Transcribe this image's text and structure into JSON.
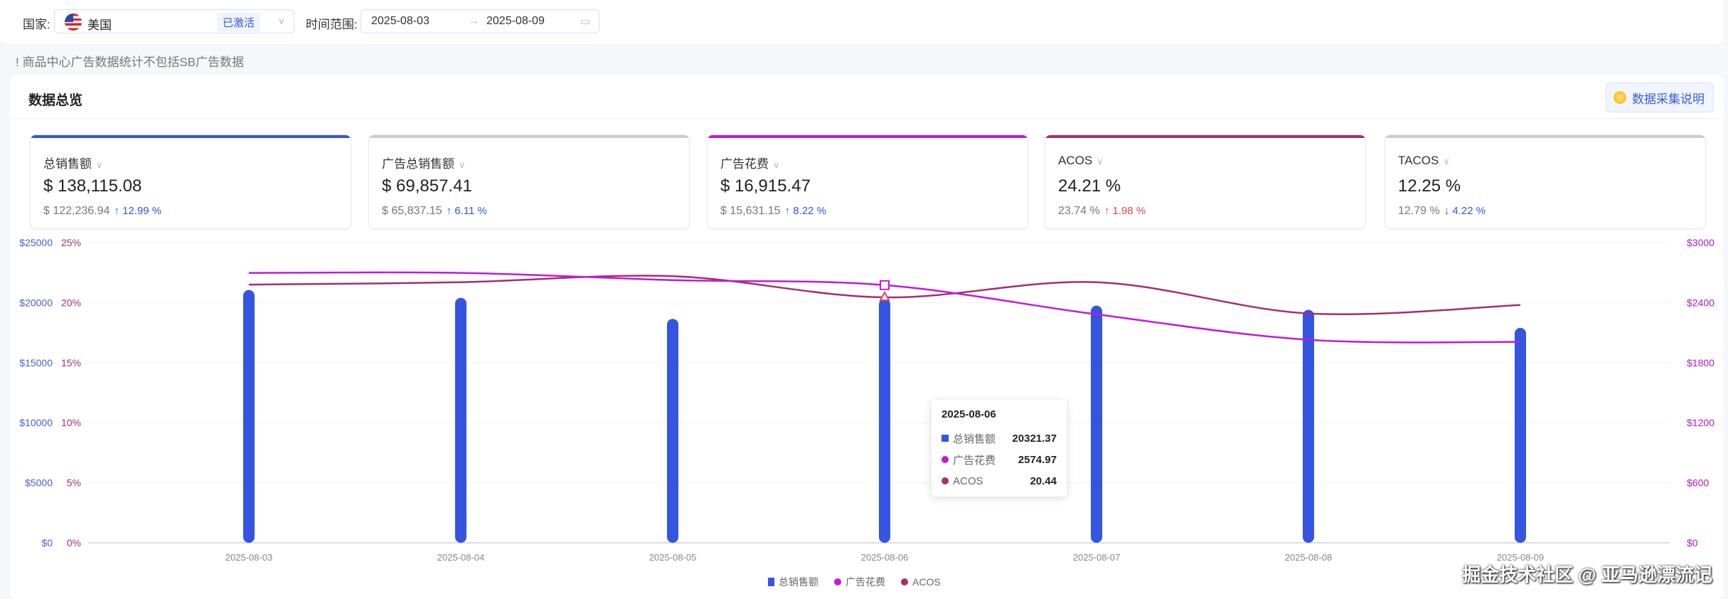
{
  "filters": {
    "country_label": "国家:",
    "country": "美国",
    "country_status": "已激活",
    "range_label": "时间范围:",
    "start_date": "2025-08-03",
    "end_date": "2025-08-09"
  },
  "notice": "! 商品中心广告数据统计不包括SB广告数据",
  "overview": {
    "title": "数据总览",
    "help_button": "数据采集说明"
  },
  "cards": [
    {
      "name": "总销售额",
      "value": "$ 138,115.08",
      "prev": "$ 122,236.94",
      "change": "12.99 %",
      "dir": "up",
      "color": "#3355e0",
      "chg_color": "#3355e0"
    },
    {
      "name": "广告总销售额",
      "value": "$ 69,857.41",
      "prev": "$ 65,837.15",
      "change": "6.11 %",
      "dir": "up",
      "color": "#cccccc",
      "chg_color": "#3355e0"
    },
    {
      "name": "广告花费",
      "value": "$ 16,915.47",
      "prev": "$ 15,631.15",
      "change": "8.22 %",
      "dir": "up",
      "color": "#c21ad6",
      "chg_color": "#3355e0"
    },
    {
      "name": "ACOS",
      "value": "24.21 %",
      "prev": "23.74 %",
      "change": "1.98 %",
      "dir": "up",
      "color": "#a3306e",
      "chg_color": "#e04848"
    },
    {
      "name": "TACOS",
      "value": "12.25 %",
      "prev": "12.79 %",
      "change": "4.22 %",
      "dir": "down",
      "color": "#cccccc",
      "chg_color": "#3355e0"
    }
  ],
  "chart_data": {
    "type": "bar",
    "categories": [
      "2025-08-03",
      "2025-08-04",
      "2025-08-05",
      "2025-08-06",
      "2025-08-07",
      "2025-08-08",
      "2025-08-09"
    ],
    "series": [
      {
        "name": "总销售额",
        "type": "bar",
        "axis": "left-dollar",
        "color": "#3355e0",
        "values": [
          21050,
          20400,
          18650,
          20321.37,
          19750,
          19400,
          17900
        ]
      },
      {
        "name": "广告花费",
        "type": "line",
        "axis": "right-dollar",
        "color": "#c21ad6",
        "values": [
          2697,
          2697,
          2625,
          2574.97,
          2283,
          2029,
          2007
        ]
      },
      {
        "name": "ACOS",
        "type": "line",
        "axis": "left-percent",
        "color": "#a3306e",
        "values": [
          21.5,
          21.7,
          22.2,
          20.44,
          21.7,
          19.1,
          19.8
        ]
      }
    ],
    "left_ticks": [
      "$0",
      "$5000",
      "$10000",
      "$15000",
      "$20000",
      "$25000"
    ],
    "pct_ticks": [
      "0%",
      "5%",
      "10%",
      "15%",
      "20%",
      "25%"
    ],
    "right_ticks": [
      "$0",
      "$600",
      "$1200",
      "$1800",
      "$2400",
      "$3000"
    ],
    "ylim_left": [
      0,
      25000
    ],
    "ylim_pct": [
      0,
      25
    ],
    "ylim_right": [
      0,
      3000
    ],
    "grid": true,
    "legend": "bottom-center",
    "tooltip": {
      "date": "2025-08-06",
      "rows": [
        {
          "name": "总销售额",
          "value": "20321.37"
        },
        {
          "name": "广告花费",
          "value": "2574.97"
        },
        {
          "name": "ACOS",
          "value": "20.44"
        }
      ]
    }
  },
  "watermark": "掘金技术社区 @ 亚马逊漂流记"
}
